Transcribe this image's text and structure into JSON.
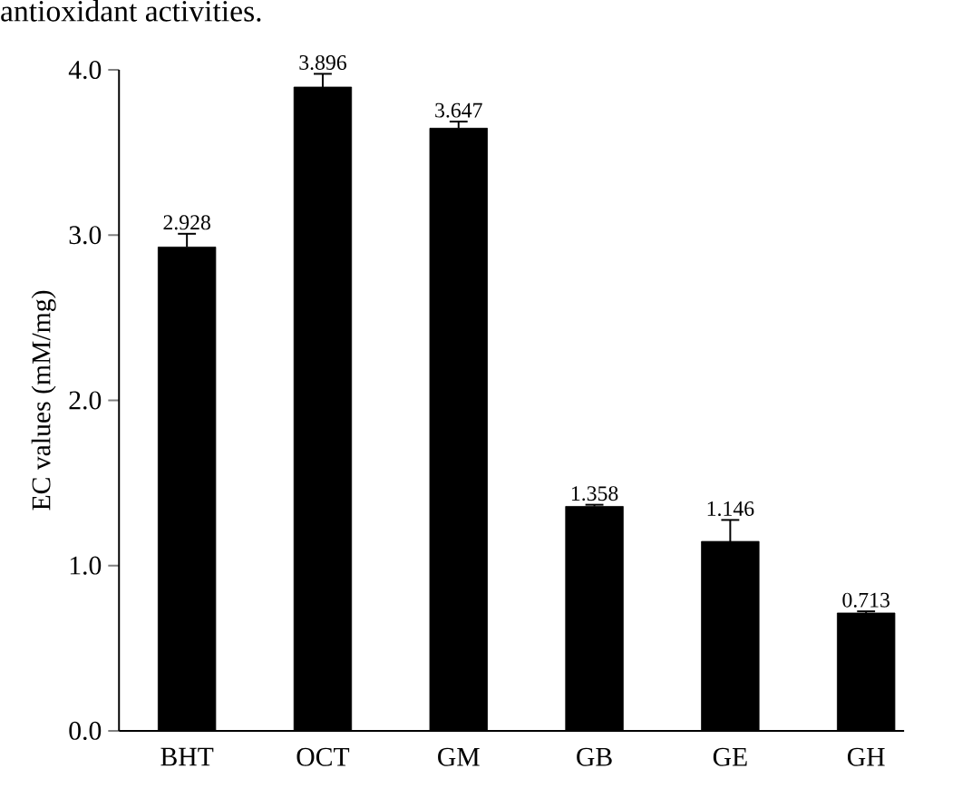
{
  "chart_data": {
    "type": "bar",
    "ylabel": "EC values (mM/mg)",
    "annotations": [
      "antioxidant activities."
    ],
    "categories": [
      "BHT",
      "OCT",
      "GM",
      "GB",
      "GE",
      "GH"
    ],
    "values": [
      2.928,
      3.896,
      3.647,
      1.358,
      1.146,
      0.713
    ],
    "errors": [
      0.08,
      0.08,
      0.04,
      0.01,
      0.13,
      0.01
    ],
    "color": "#000000",
    "data_labels": true,
    "ylim": [
      0,
      4
    ],
    "yticks": [
      {
        "value": 0,
        "label": "0.0"
      },
      {
        "value": 1,
        "label": "1.0"
      },
      {
        "value": 2,
        "label": "2.0"
      },
      {
        "value": 3,
        "label": "3.0"
      },
      {
        "value": 4,
        "label": "4.0"
      }
    ]
  }
}
